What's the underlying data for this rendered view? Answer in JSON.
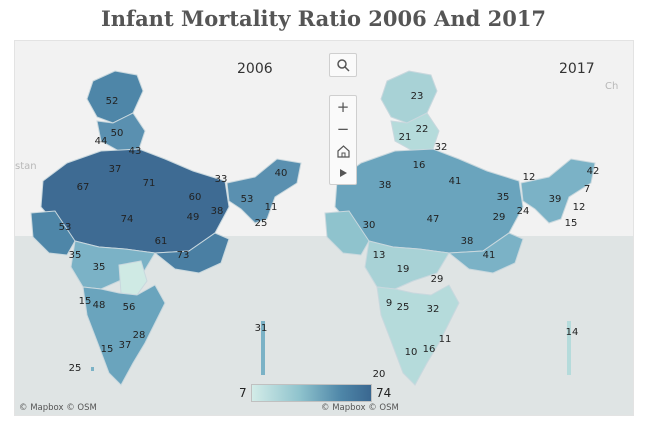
{
  "title": "Infant Mortality Ratio 2006 And 2017",
  "panels": [
    {
      "year": "2006",
      "attribution": "© Mapbox © OSM",
      "labels": [
        "52",
        "50",
        "44",
        "43",
        "37",
        "71",
        "67",
        "33",
        "40",
        "60",
        "53",
        "11",
        "49",
        "38",
        "74",
        "53",
        "61",
        "73",
        "25",
        "35",
        "35",
        "15",
        "48",
        "56",
        "28",
        "15",
        "37",
        "31",
        "25"
      ]
    },
    {
      "year": "2017",
      "attribution": "© Mapbox © OSM",
      "labels": [
        "23",
        "22",
        "21",
        "32",
        "16",
        "41",
        "38",
        "12",
        "42",
        "7",
        "35",
        "39",
        "12",
        "29",
        "24",
        "15",
        "30",
        "47",
        "38",
        "41",
        "13",
        "19",
        "29",
        "9",
        "25",
        "32",
        "11",
        "10",
        "16",
        "14",
        "20"
      ]
    }
  ],
  "background_labels": [
    "stan",
    "Ch"
  ],
  "legend": {
    "min": "7",
    "max": "74"
  },
  "map_controls": [
    "search-icon",
    "zoom-in-icon",
    "zoom-out-icon",
    "home-icon",
    "play-icon"
  ],
  "colors": {
    "low": "#d3ece8",
    "mid": "#8fc3cd",
    "high": "#4e86a8",
    "max": "#3a6790",
    "sea": "#dfe4e4",
    "land": "#f2f2f2"
  }
}
